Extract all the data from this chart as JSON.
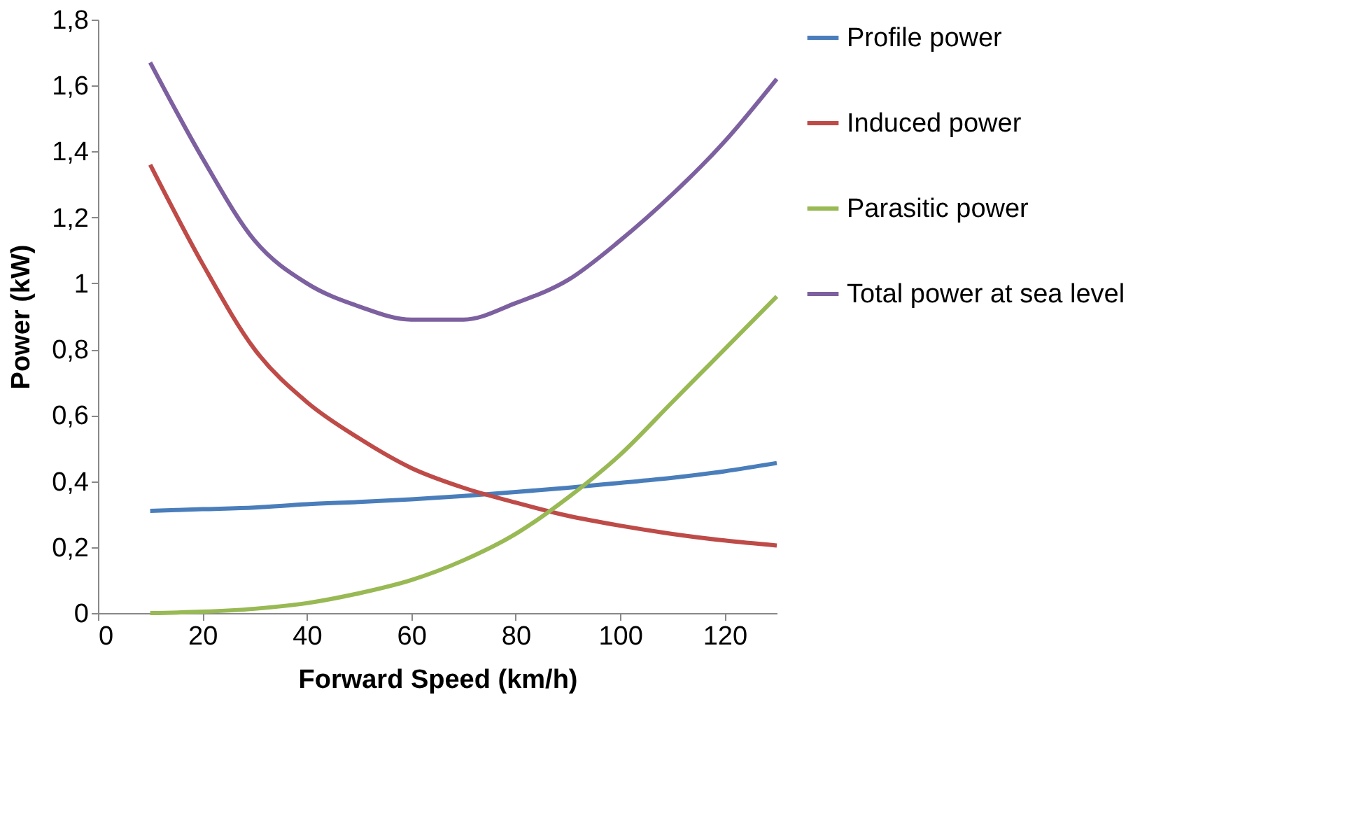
{
  "chart_data": {
    "type": "line",
    "xlabel": "Forward Speed (km/h)",
    "ylabel": "Power (kW)",
    "x": [
      10,
      20,
      30,
      40,
      50,
      60,
      70,
      80,
      90,
      100,
      110,
      120,
      130
    ],
    "series": [
      {
        "name": "Profile power",
        "color": "#4a7ebb",
        "values": [
          0.31,
          0.315,
          0.32,
          0.33,
          0.337,
          0.345,
          0.355,
          0.367,
          0.38,
          0.395,
          0.41,
          0.43,
          0.455
        ]
      },
      {
        "name": "Induced power",
        "color": "#be4b48",
        "values": [
          1.36,
          1.06,
          0.8,
          0.64,
          0.53,
          0.44,
          0.38,
          0.335,
          0.295,
          0.265,
          0.24,
          0.22,
          0.205
        ]
      },
      {
        "name": "Parasitic power",
        "color": "#98b954",
        "values": [
          0,
          0.004,
          0.013,
          0.03,
          0.06,
          0.1,
          0.16,
          0.24,
          0.35,
          0.48,
          0.64,
          0.8,
          0.96
        ]
      },
      {
        "name": "Total power at sea level",
        "color": "#7d60a0",
        "values": [
          1.67,
          1.38,
          1.13,
          1.0,
          0.93,
          0.89,
          0.89,
          0.94,
          1.01,
          1.13,
          1.27,
          1.43,
          1.62
        ]
      }
    ],
    "xlim": [
      0,
      130
    ],
    "xticks": [
      0,
      20,
      40,
      60,
      80,
      100,
      120
    ],
    "ylim": [
      0,
      1.8
    ],
    "yticks": [
      0,
      {
        "value": 0.2,
        "label": "0,2"
      },
      {
        "value": 0.4,
        "label": "0,4"
      },
      {
        "value": 0.6,
        "label": "0,6"
      },
      {
        "value": 0.8,
        "label": "0,8"
      },
      1,
      {
        "value": 1.2,
        "label": "1,2"
      },
      {
        "value": 1.4,
        "label": "1,4"
      },
      {
        "value": 1.6,
        "label": "1,6"
      },
      {
        "value": 1.8,
        "label": "1,8"
      }
    ],
    "grid": false,
    "legend": "right",
    "marker": "none",
    "line_style": "solid"
  }
}
